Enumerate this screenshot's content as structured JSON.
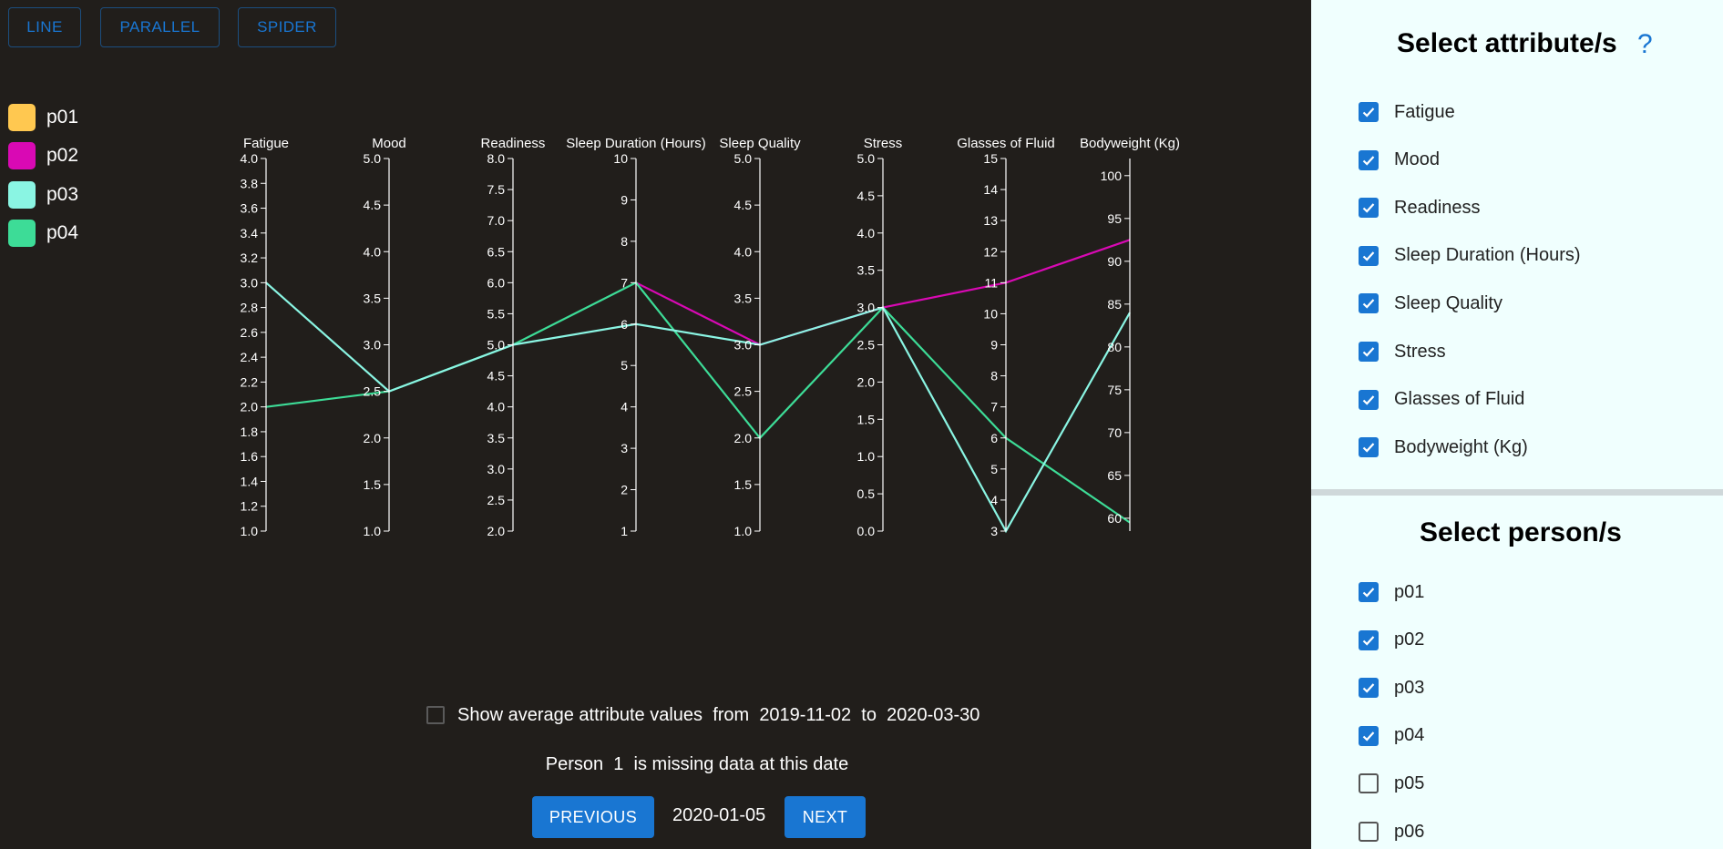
{
  "top_buttons": {
    "line": "LINE",
    "parallel": "PARALLEL",
    "spider": "SPIDER"
  },
  "colors": {
    "p01": "#ffc850",
    "p02": "#d909b4",
    "p03": "#8af5e3",
    "p04": "#3ddc97",
    "accent": "#1976d2",
    "background": "#211e1b",
    "panel": "#f0fffe"
  },
  "legend": [
    {
      "label": "p01",
      "color": "#ffc850"
    },
    {
      "label": "p02",
      "color": "#d909b4"
    },
    {
      "label": "p03",
      "color": "#8af5e3"
    },
    {
      "label": "p04",
      "color": "#3ddc97"
    }
  ],
  "chart_data": {
    "type": "parallel-coordinates",
    "axes": [
      {
        "name": "Fatigue",
        "range": [
          1.0,
          4.0
        ],
        "ticks": [
          "1.0",
          "1.2",
          "1.4",
          "1.6",
          "1.8",
          "2.0",
          "2.2",
          "2.4",
          "2.6",
          "2.8",
          "3.0",
          "3.2",
          "3.4",
          "3.6",
          "3.8",
          "4.0"
        ]
      },
      {
        "name": "Mood",
        "range": [
          1.0,
          5.0
        ],
        "ticks": [
          "1.0",
          "1.5",
          "2.0",
          "2.5",
          "3.0",
          "3.5",
          "4.0",
          "4.5",
          "5.0"
        ]
      },
      {
        "name": "Readiness",
        "range": [
          2.0,
          8.0
        ],
        "ticks": [
          "2.0",
          "2.5",
          "3.0",
          "3.5",
          "4.0",
          "4.5",
          "5.0",
          "5.5",
          "6.0",
          "6.5",
          "7.0",
          "7.5",
          "8.0"
        ]
      },
      {
        "name": "Sleep Duration (Hours)",
        "range": [
          1,
          10
        ],
        "ticks": [
          "1",
          "2",
          "3",
          "4",
          "5",
          "6",
          "7",
          "8",
          "9",
          "10"
        ]
      },
      {
        "name": "Sleep Quality",
        "range": [
          1.0,
          5.0
        ],
        "ticks": [
          "1.0",
          "1.5",
          "2.0",
          "2.5",
          "3.0",
          "3.5",
          "4.0",
          "4.5",
          "5.0"
        ]
      },
      {
        "name": "Stress",
        "range": [
          0.0,
          5.0
        ],
        "ticks": [
          "0.0",
          "0.5",
          "1.0",
          "1.5",
          "2.0",
          "2.5",
          "3.0",
          "3.5",
          "4.0",
          "4.5",
          "5.0"
        ]
      },
      {
        "name": "Glasses of Fluid",
        "range": [
          3,
          15
        ],
        "ticks": [
          "3",
          "4",
          "5",
          "6",
          "7",
          "8",
          "9",
          "10",
          "11",
          "12",
          "13",
          "14",
          "15"
        ]
      },
      {
        "name": "Bodyweight (Kg)",
        "range": [
          58.5,
          102
        ],
        "ticks": [
          "60",
          "65",
          "70",
          "75",
          "80",
          "85",
          "90",
          "95",
          "100"
        ]
      }
    ],
    "series": [
      {
        "name": "p02",
        "color": "#d909b4",
        "values": [
          null,
          null,
          null,
          7,
          3.0,
          3.0,
          11,
          92.5
        ]
      },
      {
        "name": "p04",
        "color": "#3ddc97",
        "values": [
          2.0,
          2.5,
          5.0,
          7,
          2.0,
          3.0,
          6,
          59.5
        ]
      },
      {
        "name": "p03",
        "color": "#8af5e3",
        "values": [
          3.0,
          2.5,
          5.0,
          6,
          3.0,
          3.0,
          3,
          84
        ]
      }
    ]
  },
  "average": {
    "label_prefix": "Show average attribute values",
    "from_label": "from",
    "from_date": "2019-11-02",
    "to_label": "to",
    "to_date": "2020-03-30",
    "checked": false
  },
  "missing": {
    "prefix": "Person",
    "person": "1",
    "suffix": "is missing data at this date"
  },
  "navigation": {
    "previous_label": "PREVIOUS",
    "date": "2020-01-05",
    "next_label": "NEXT"
  },
  "side_panel": {
    "attributes_title": "Select attribute/s",
    "help_symbol": "?",
    "attributes": [
      {
        "label": "Fatigue",
        "checked": true
      },
      {
        "label": "Mood",
        "checked": true
      },
      {
        "label": "Readiness",
        "checked": true
      },
      {
        "label": "Sleep Duration (Hours)",
        "checked": true
      },
      {
        "label": "Sleep Quality",
        "checked": true
      },
      {
        "label": "Stress",
        "checked": true
      },
      {
        "label": "Glasses of Fluid",
        "checked": true
      },
      {
        "label": "Bodyweight (Kg)",
        "checked": true
      }
    ],
    "persons_title": "Select person/s",
    "persons": [
      {
        "label": "p01",
        "checked": true
      },
      {
        "label": "p02",
        "checked": true
      },
      {
        "label": "p03",
        "checked": true
      },
      {
        "label": "p04",
        "checked": true
      },
      {
        "label": "p05",
        "checked": false
      },
      {
        "label": "p06",
        "checked": false
      }
    ]
  }
}
